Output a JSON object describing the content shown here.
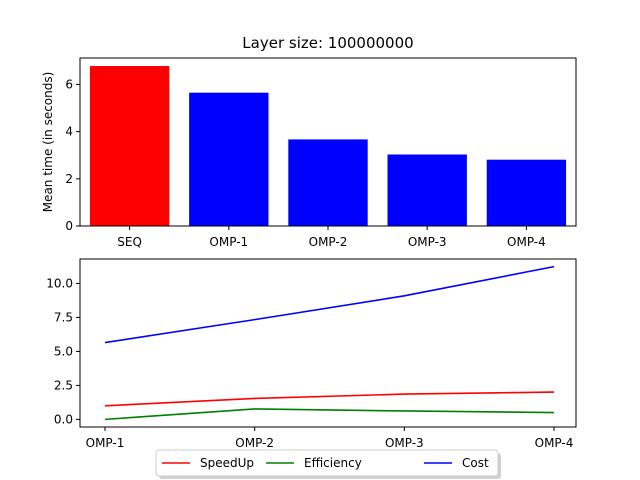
{
  "chart_data": [
    {
      "type": "bar",
      "title": "Layer size: 100000000",
      "xlabel": "",
      "ylabel": "Mean time (in seconds)",
      "categories": [
        "SEQ",
        "OMP-1",
        "OMP-2",
        "OMP-3",
        "OMP-4"
      ],
      "values": [
        6.78,
        5.65,
        3.67,
        3.03,
        2.81
      ],
      "bar_colors": [
        "#ff0000",
        "#0000ff",
        "#0000ff",
        "#0000ff",
        "#0000ff"
      ],
      "ylim": [
        0,
        7.12
      ],
      "yticks": [
        0,
        2,
        4,
        6
      ],
      "ytick_labels": [
        "0",
        "2",
        "4",
        "6"
      ],
      "grid": false
    },
    {
      "type": "line",
      "title": "",
      "xlabel": "",
      "ylabel": "",
      "categories": [
        "OMP-1",
        "OMP-2",
        "OMP-3",
        "OMP-4"
      ],
      "series": [
        {
          "name": "SpeedUp",
          "color": "#ff0000",
          "values": [
            1.0,
            1.54,
            1.86,
            2.01
          ]
        },
        {
          "name": "Efficiency",
          "color": "#008000",
          "values": [
            0.0,
            0.77,
            0.62,
            0.5
          ]
        },
        {
          "name": "Cost",
          "color": "#0000ff",
          "values": [
            5.65,
            7.34,
            9.09,
            11.24
          ]
        }
      ],
      "ylim": [
        -0.56,
        11.8
      ],
      "yticks": [
        0.0,
        2.5,
        5.0,
        7.5,
        10.0
      ],
      "ytick_labels": [
        "0.0",
        "2.5",
        "5.0",
        "7.5",
        "10.0"
      ],
      "legend": "bottom-center",
      "grid": false
    }
  ]
}
